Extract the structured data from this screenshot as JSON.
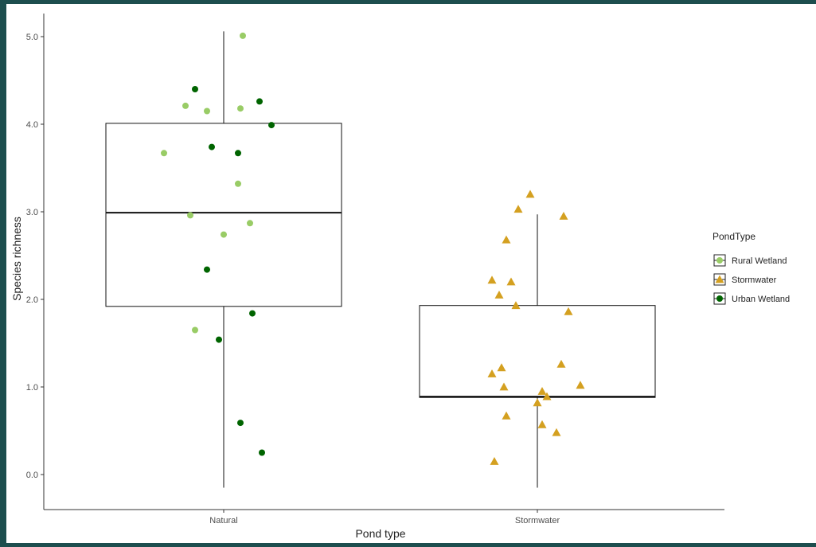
{
  "chart_data": {
    "type": "boxplot",
    "xlabel": "Pond type",
    "ylabel": "Species richness",
    "categories": [
      "Natural",
      "Stormwater"
    ],
    "ylim": [
      -0.4,
      5.3
    ],
    "yticks": [
      {
        "value": 0,
        "label": "0.0"
      },
      {
        "value": 1,
        "label": "1.0"
      },
      {
        "value": 2,
        "label": "2.0"
      },
      {
        "value": 3,
        "label": "3.0"
      },
      {
        "value": 4,
        "label": "4.0"
      },
      {
        "value": 5,
        "label": "5.0"
      }
    ],
    "grid": false,
    "legend": {
      "title": "PondType",
      "placement": "right",
      "items": [
        {
          "label": "Rural Wetland",
          "color": "#99cc66",
          "shape": "circle"
        },
        {
          "label": "Stormwater",
          "color": "#d4a020",
          "shape": "triangle"
        },
        {
          "label": "Urban Wetland",
          "color": "#006400",
          "shape": "circle"
        }
      ]
    },
    "boxes": [
      {
        "category": "Natural",
        "whisker_low": -0.15,
        "q1": 1.92,
        "median": 2.99,
        "q3": 4.01,
        "whisker_high": 5.06
      },
      {
        "category": "Stormwater",
        "whisker_low": -0.15,
        "q1": 0.88,
        "median": 0.89,
        "q3": 1.93,
        "whisker_high": 2.97
      }
    ],
    "series": [
      {
        "name": "Rural Wetland",
        "category": "Natural",
        "color": "#99cc66",
        "shape": "circle",
        "points": [
          {
            "jitter": 0.08,
            "y": 5.01
          },
          {
            "jitter": -0.16,
            "y": 4.21
          },
          {
            "jitter": -0.07,
            "y": 4.15
          },
          {
            "jitter": 0.07,
            "y": 4.18
          },
          {
            "jitter": -0.25,
            "y": 3.67
          },
          {
            "jitter": 0.06,
            "y": 3.32
          },
          {
            "jitter": -0.14,
            "y": 2.96
          },
          {
            "jitter": 0.0,
            "y": 2.74
          },
          {
            "jitter": 0.11,
            "y": 2.87
          },
          {
            "jitter": -0.12,
            "y": 1.65
          }
        ]
      },
      {
        "name": "Urban Wetland",
        "category": "Natural",
        "color": "#006400",
        "shape": "circle",
        "points": [
          {
            "jitter": -0.12,
            "y": 4.4
          },
          {
            "jitter": 0.15,
            "y": 4.26
          },
          {
            "jitter": 0.2,
            "y": 3.99
          },
          {
            "jitter": -0.05,
            "y": 3.74
          },
          {
            "jitter": 0.06,
            "y": 3.67
          },
          {
            "jitter": -0.07,
            "y": 2.34
          },
          {
            "jitter": 0.12,
            "y": 1.84
          },
          {
            "jitter": -0.02,
            "y": 1.54
          },
          {
            "jitter": 0.07,
            "y": 0.59
          },
          {
            "jitter": 0.16,
            "y": 0.25
          }
        ]
      },
      {
        "name": "Stormwater",
        "category": "Stormwater",
        "color": "#d4a020",
        "shape": "triangle",
        "points": [
          {
            "jitter": -0.03,
            "y": 3.2
          },
          {
            "jitter": -0.08,
            "y": 3.03
          },
          {
            "jitter": 0.11,
            "y": 2.95
          },
          {
            "jitter": -0.13,
            "y": 2.68
          },
          {
            "jitter": -0.19,
            "y": 2.22
          },
          {
            "jitter": -0.11,
            "y": 2.2
          },
          {
            "jitter": -0.16,
            "y": 2.05
          },
          {
            "jitter": -0.09,
            "y": 1.93
          },
          {
            "jitter": 0.13,
            "y": 1.86
          },
          {
            "jitter": 0.1,
            "y": 1.26
          },
          {
            "jitter": -0.15,
            "y": 1.22
          },
          {
            "jitter": -0.19,
            "y": 1.15
          },
          {
            "jitter": 0.18,
            "y": 1.02
          },
          {
            "jitter": -0.14,
            "y": 1.0
          },
          {
            "jitter": 0.02,
            "y": 0.95
          },
          {
            "jitter": 0.04,
            "y": 0.89
          },
          {
            "jitter": 0.0,
            "y": 0.82
          },
          {
            "jitter": -0.13,
            "y": 0.67
          },
          {
            "jitter": 0.02,
            "y": 0.57
          },
          {
            "jitter": 0.08,
            "y": 0.48
          },
          {
            "jitter": -0.18,
            "y": 0.15
          }
        ]
      }
    ]
  }
}
